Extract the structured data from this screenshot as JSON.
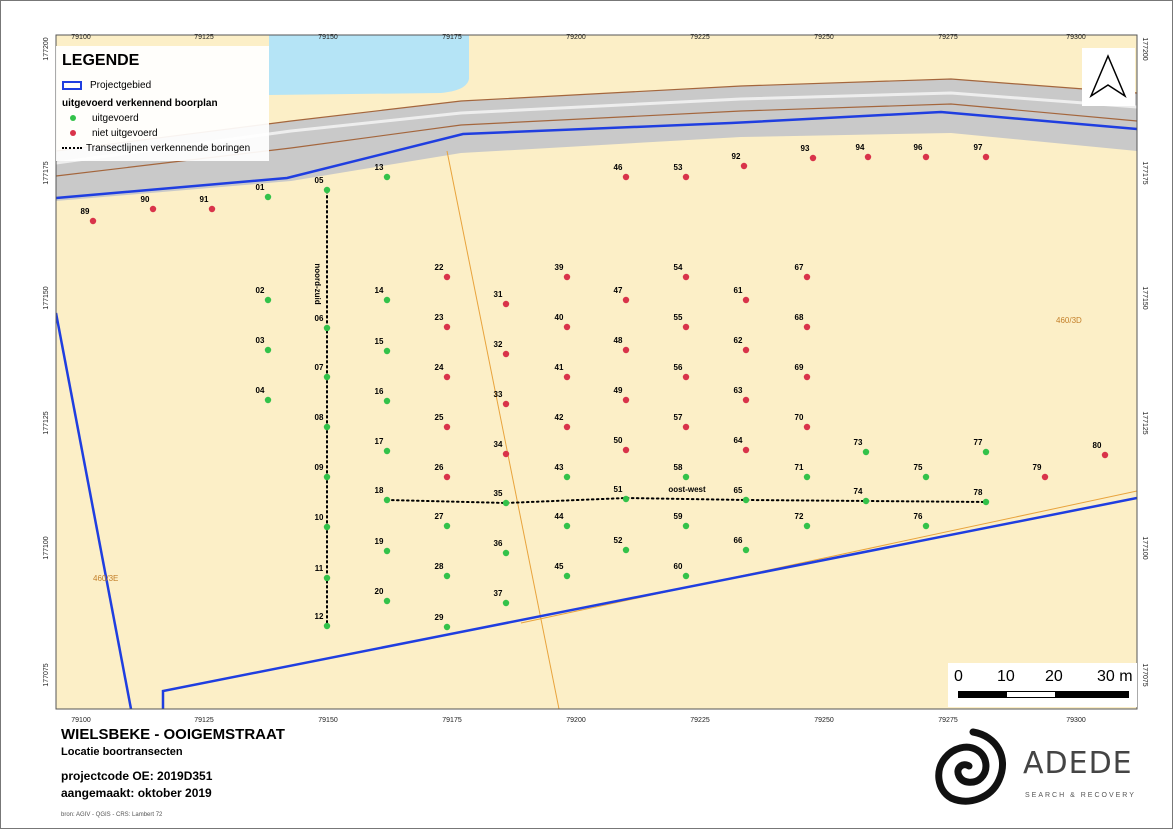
{
  "map": {
    "x_ticks": [
      "79100",
      "79125",
      "79150",
      "79175",
      "79200",
      "79225",
      "79250",
      "79275",
      "79300"
    ],
    "y_ticks": [
      "177200",
      "177175",
      "177150",
      "177125",
      "177100",
      "177075"
    ],
    "parcel_labels": [
      "460/3D",
      "460/3E"
    ],
    "transect_labels": [
      "noord-zuid",
      "oost-west"
    ],
    "points": [
      {
        "id": "01",
        "status": "uitgevoerd"
      },
      {
        "id": "02",
        "status": "uitgevoerd"
      },
      {
        "id": "03",
        "status": "uitgevoerd"
      },
      {
        "id": "04",
        "status": "uitgevoerd"
      },
      {
        "id": "05",
        "status": "uitgevoerd"
      },
      {
        "id": "06",
        "status": "uitgevoerd"
      },
      {
        "id": "07",
        "status": "uitgevoerd"
      },
      {
        "id": "08",
        "status": "uitgevoerd"
      },
      {
        "id": "09",
        "status": "uitgevoerd"
      },
      {
        "id": "10",
        "status": "uitgevoerd"
      },
      {
        "id": "11",
        "status": "uitgevoerd"
      },
      {
        "id": "12",
        "status": "uitgevoerd"
      },
      {
        "id": "13",
        "status": "uitgevoerd"
      },
      {
        "id": "14",
        "status": "uitgevoerd"
      },
      {
        "id": "15",
        "status": "uitgevoerd"
      },
      {
        "id": "16",
        "status": "uitgevoerd"
      },
      {
        "id": "17",
        "status": "uitgevoerd"
      },
      {
        "id": "18",
        "status": "uitgevoerd"
      },
      {
        "id": "19",
        "status": "uitgevoerd"
      },
      {
        "id": "20",
        "status": "uitgevoerd"
      },
      {
        "id": "22",
        "status": "niet uitgevoerd"
      },
      {
        "id": "23",
        "status": "niet uitgevoerd"
      },
      {
        "id": "24",
        "status": "niet uitgevoerd"
      },
      {
        "id": "25",
        "status": "niet uitgevoerd"
      },
      {
        "id": "26",
        "status": "niet uitgevoerd"
      },
      {
        "id": "27",
        "status": "uitgevoerd"
      },
      {
        "id": "28",
        "status": "uitgevoerd"
      },
      {
        "id": "29",
        "status": "uitgevoerd"
      },
      {
        "id": "31",
        "status": "niet uitgevoerd"
      },
      {
        "id": "32",
        "status": "niet uitgevoerd"
      },
      {
        "id": "33",
        "status": "niet uitgevoerd"
      },
      {
        "id": "34",
        "status": "niet uitgevoerd"
      },
      {
        "id": "35",
        "status": "uitgevoerd"
      },
      {
        "id": "36",
        "status": "uitgevoerd"
      },
      {
        "id": "37",
        "status": "uitgevoerd"
      },
      {
        "id": "39",
        "status": "niet uitgevoerd"
      },
      {
        "id": "40",
        "status": "niet uitgevoerd"
      },
      {
        "id": "41",
        "status": "niet uitgevoerd"
      },
      {
        "id": "42",
        "status": "niet uitgevoerd"
      },
      {
        "id": "43",
        "status": "uitgevoerd"
      },
      {
        "id": "44",
        "status": "uitgevoerd"
      },
      {
        "id": "45",
        "status": "uitgevoerd"
      },
      {
        "id": "46",
        "status": "niet uitgevoerd"
      },
      {
        "id": "47",
        "status": "niet uitgevoerd"
      },
      {
        "id": "48",
        "status": "niet uitgevoerd"
      },
      {
        "id": "49",
        "status": "niet uitgevoerd"
      },
      {
        "id": "50",
        "status": "niet uitgevoerd"
      },
      {
        "id": "51",
        "status": "uitgevoerd"
      },
      {
        "id": "52",
        "status": "uitgevoerd"
      },
      {
        "id": "53",
        "status": "niet uitgevoerd"
      },
      {
        "id": "54",
        "status": "niet uitgevoerd"
      },
      {
        "id": "55",
        "status": "niet uitgevoerd"
      },
      {
        "id": "56",
        "status": "niet uitgevoerd"
      },
      {
        "id": "57",
        "status": "niet uitgevoerd"
      },
      {
        "id": "58",
        "status": "uitgevoerd"
      },
      {
        "id": "59",
        "status": "uitgevoerd"
      },
      {
        "id": "60",
        "status": "uitgevoerd"
      },
      {
        "id": "61",
        "status": "niet uitgevoerd"
      },
      {
        "id": "62",
        "status": "niet uitgevoerd"
      },
      {
        "id": "63",
        "status": "niet uitgevoerd"
      },
      {
        "id": "64",
        "status": "niet uitgevoerd"
      },
      {
        "id": "65",
        "status": "uitgevoerd"
      },
      {
        "id": "66",
        "status": "uitgevoerd"
      },
      {
        "id": "67",
        "status": "niet uitgevoerd"
      },
      {
        "id": "68",
        "status": "niet uitgevoerd"
      },
      {
        "id": "69",
        "status": "niet uitgevoerd"
      },
      {
        "id": "70",
        "status": "niet uitgevoerd"
      },
      {
        "id": "71",
        "status": "uitgevoerd"
      },
      {
        "id": "72",
        "status": "uitgevoerd"
      },
      {
        "id": "73",
        "status": "uitgevoerd"
      },
      {
        "id": "74",
        "status": "uitgevoerd"
      },
      {
        "id": "75",
        "status": "uitgevoerd"
      },
      {
        "id": "76",
        "status": "uitgevoerd"
      },
      {
        "id": "77",
        "status": "uitgevoerd"
      },
      {
        "id": "78",
        "status": "uitgevoerd"
      },
      {
        "id": "79",
        "status": "niet uitgevoerd"
      },
      {
        "id": "80",
        "status": "niet uitgevoerd"
      },
      {
        "id": "89",
        "status": "niet uitgevoerd"
      },
      {
        "id": "90",
        "status": "niet uitgevoerd"
      },
      {
        "id": "91",
        "status": "niet uitgevoerd"
      },
      {
        "id": "92",
        "status": "niet uitgevoerd"
      },
      {
        "id": "93",
        "status": "niet uitgevoerd"
      },
      {
        "id": "94",
        "status": "niet uitgevoerd"
      },
      {
        "id": "96",
        "status": "niet uitgevoerd"
      },
      {
        "id": "97",
        "status": "niet uitgevoerd"
      }
    ],
    "colors": {
      "land": "#fcefc7",
      "water": "#b5e4f6",
      "road": "#c9c9c9",
      "road_edge": "#a4663d",
      "boundary": "#1f3ee0",
      "parcel_line": "#e8a33c",
      "done": "#33c24a",
      "not_done": "#d9334a"
    }
  },
  "legend": {
    "title": "LEGENDE",
    "projectgebied": "Projectgebied",
    "section": "uitgevoerd verkennend boorplan",
    "done": "uitgevoerd",
    "not_done": "niet uitgevoerd",
    "transect": "Transectlijnen verkennende boringen"
  },
  "scalebar": {
    "labels": [
      "0",
      "10",
      "20",
      "30 m"
    ]
  },
  "title_block": {
    "title": "WIELSBEKE - OOIGEMSTRAAT",
    "subtitle": "Locatie boortransecten",
    "projectcode": "projectcode OE: 2019D351",
    "created": "aangemaakt: oktober 2019",
    "source": "bron: AGIV - QGIS - CRS: Lambert 72"
  },
  "logo": {
    "name": "ADEDE",
    "tagline": "SEARCH & RECOVERY"
  }
}
